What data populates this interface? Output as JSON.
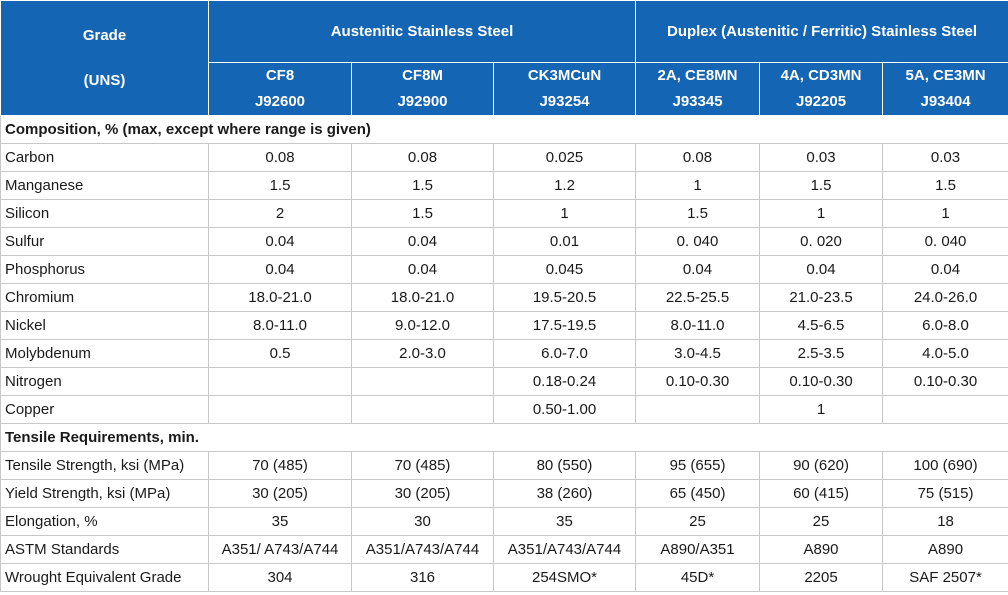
{
  "header": {
    "grade": "Grade",
    "uns": "(UNS)",
    "austenitic": "Austenitic Stainless Steel",
    "duplex": "Duplex (Austenitic / Ferritic) Stainless Steel",
    "columns": [
      {
        "name": "CF8",
        "uns": "J92600"
      },
      {
        "name": "CF8M",
        "uns": "J92900"
      },
      {
        "name": "CK3MCuN",
        "uns": "J93254"
      },
      {
        "name": "2A, CE8MN",
        "uns": "J93345"
      },
      {
        "name": "4A, CD3MN",
        "uns": "J92205"
      },
      {
        "name": "5A, CE3MN",
        "uns": "J93404"
      }
    ]
  },
  "sections": {
    "composition": "Composition, % (max, except where range is given)",
    "tensile": "Tensile Requirements, min."
  },
  "rows": [
    {
      "label": "Carbon",
      "values": [
        "0.08",
        "0.08",
        "0.025",
        "0.08",
        "0.03",
        "0.03"
      ]
    },
    {
      "label": "Manganese",
      "values": [
        "1.5",
        "1.5",
        "1.2",
        "1",
        "1.5",
        "1.5"
      ]
    },
    {
      "label": "Silicon",
      "values": [
        "2",
        "1.5",
        "1",
        "1.5",
        "1",
        "1"
      ]
    },
    {
      "label": "Sulfur",
      "values": [
        "0.04",
        "0.04",
        "0.01",
        "0. 040",
        "0. 020",
        "0. 040"
      ]
    },
    {
      "label": "Phosphorus",
      "values": [
        "0.04",
        "0.04",
        "0.045",
        "0.04",
        "0.04",
        "0.04"
      ]
    },
    {
      "label": "Chromium",
      "values": [
        "18.0-21.0",
        "18.0-21.0",
        "19.5-20.5",
        "22.5-25.5",
        "21.0-23.5",
        "24.0-26.0"
      ]
    },
    {
      "label": "Nickel",
      "values": [
        "8.0-11.0",
        "9.0-12.0",
        "17.5-19.5",
        "8.0-11.0",
        "4.5-6.5",
        "6.0-8.0"
      ]
    },
    {
      "label": "Molybdenum",
      "values": [
        "0.5",
        "2.0-3.0",
        "6.0-7.0",
        "3.0-4.5",
        "2.5-3.5",
        "4.0-5.0"
      ]
    },
    {
      "label": "Nitrogen",
      "values": [
        "",
        "",
        "0.18-0.24",
        "0.10-0.30",
        "0.10-0.30",
        "0.10-0.30"
      ]
    },
    {
      "label": "Copper",
      "values": [
        "",
        "",
        "0.50-1.00",
        "",
        "1",
        ""
      ]
    },
    {
      "label": "Tensile Strength, ksi (MPa)",
      "values": [
        "70 (485)",
        "70 (485)",
        "80 (550)",
        "95 (655)",
        "90 (620)",
        "100 (690)"
      ]
    },
    {
      "label": "Yield Strength, ksi (MPa)",
      "values": [
        "30 (205)",
        "30 (205)",
        "38 (260)",
        "65 (450)",
        "60 (415)",
        "75 (515)"
      ]
    },
    {
      "label": "Elongation, %",
      "values": [
        "35",
        "30",
        "35",
        "25",
        "25",
        "18"
      ]
    },
    {
      "label": "ASTM Standards",
      "values": [
        "A351/ A743/A744",
        "A351/A743/A744",
        "A351/A743/A744",
        "A890/A351",
        "A890",
        "A890"
      ]
    },
    {
      "label": "Wrought Equivalent Grade",
      "values": [
        "304",
        "316",
        "254SMO*",
        "45D*",
        "2205",
        "SAF 2507*"
      ]
    }
  ]
}
